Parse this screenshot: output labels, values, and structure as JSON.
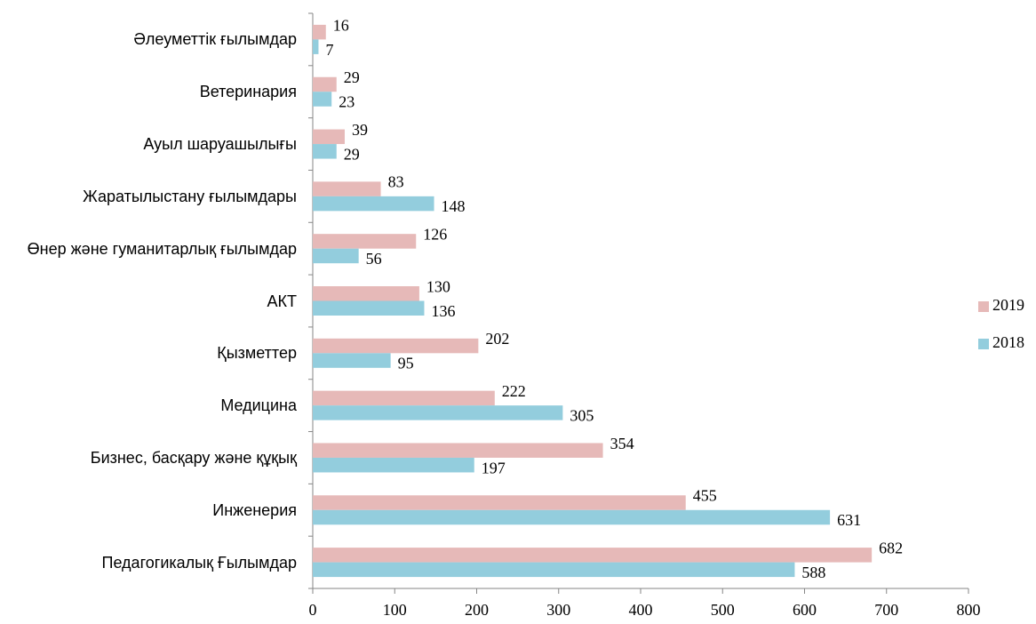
{
  "chart_data": {
    "type": "bar",
    "orientation": "horizontal",
    "categories": [
      "Әлеуметтік ғылымдар",
      "Ветеринария",
      "Ауыл шаруашылығы",
      "Жаратылыстану ғылымдары",
      "Өнер және гуманитарлық ғылымдар",
      "АКТ",
      "Қызметтер",
      "Медицина",
      "Бизнес, басқару және құқық",
      "Инженерия",
      "Педагогикалық Ғылымдар"
    ],
    "series": [
      {
        "name": "2019",
        "color": "#e6b9b8",
        "values": [
          16,
          29,
          39,
          83,
          126,
          130,
          202,
          222,
          354,
          455,
          682
        ]
      },
      {
        "name": "2018",
        "color": "#93cddd",
        "values": [
          7,
          23,
          29,
          148,
          56,
          136,
          95,
          305,
          197,
          631,
          588
        ]
      }
    ],
    "xlim": [
      0,
      800
    ],
    "xticks": [
      0,
      100,
      200,
      300,
      400,
      500,
      600,
      700,
      800
    ],
    "legend": "right",
    "grid": false
  }
}
